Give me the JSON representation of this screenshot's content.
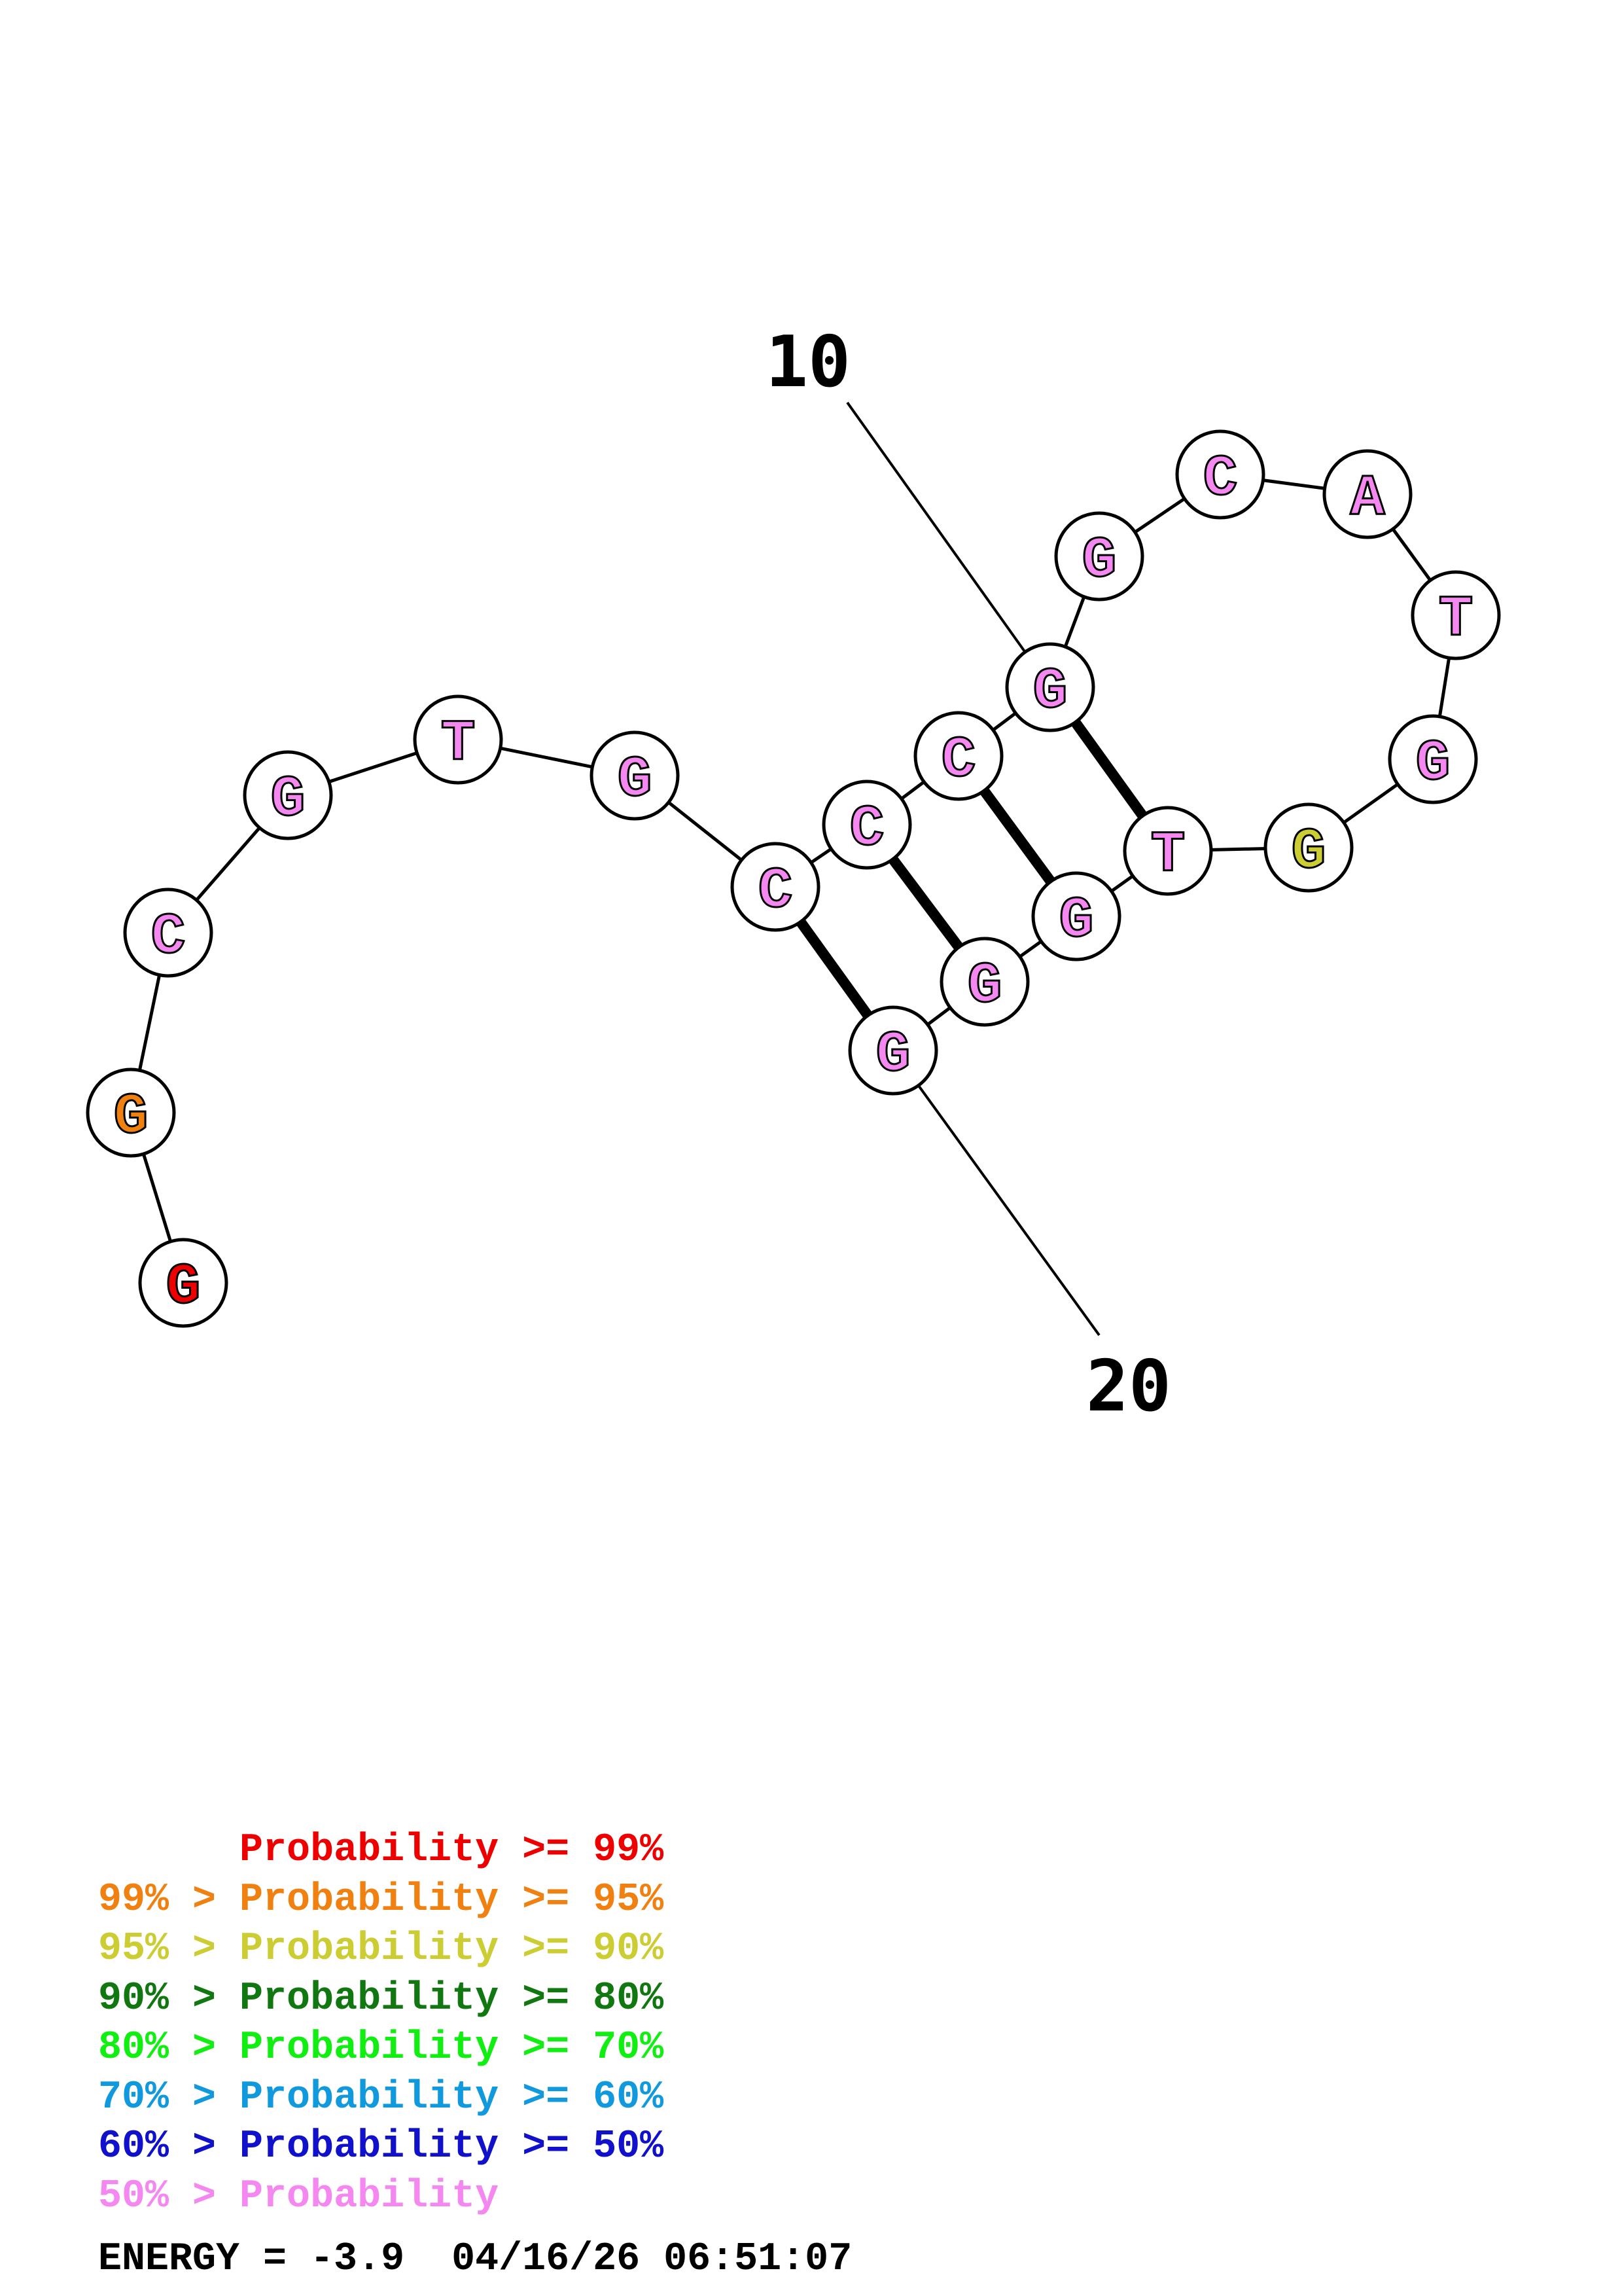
{
  "colors": {
    "p99": "#ee0000",
    "p95": "#f08010",
    "p90": "#cccc33",
    "p80": "#117711",
    "p70": "#11ee11",
    "p60": "#1199dd",
    "p50": "#1111cc",
    "plow": "#f588f0",
    "line": "#000000"
  },
  "nucleotides": [
    {
      "base": "G",
      "prob": "p99"
    },
    {
      "base": "G",
      "prob": "p95"
    },
    {
      "base": "C",
      "prob": "plow"
    },
    {
      "base": "G",
      "prob": "plow"
    },
    {
      "base": "T",
      "prob": "plow"
    },
    {
      "base": "G",
      "prob": "plow"
    },
    {
      "base": "C",
      "prob": "plow"
    },
    {
      "base": "C",
      "prob": "plow"
    },
    {
      "base": "C",
      "prob": "plow"
    },
    {
      "base": "G",
      "prob": "plow"
    },
    {
      "base": "G",
      "prob": "plow"
    },
    {
      "base": "C",
      "prob": "plow"
    },
    {
      "base": "A",
      "prob": "plow"
    },
    {
      "base": "T",
      "prob": "plow"
    },
    {
      "base": "G",
      "prob": "plow"
    },
    {
      "base": "G",
      "prob": "p90"
    },
    {
      "base": "T",
      "prob": "plow"
    },
    {
      "base": "G",
      "prob": "plow"
    },
    {
      "base": "G",
      "prob": "plow"
    },
    {
      "base": "G",
      "prob": "plow"
    }
  ],
  "pairs": [
    [
      7,
      20
    ],
    [
      8,
      19
    ],
    [
      9,
      18
    ],
    [
      10,
      17
    ]
  ],
  "position_labels": [
    {
      "text": "10",
      "nucleotide": 10
    },
    {
      "text": "20",
      "nucleotide": 20
    }
  ],
  "legend": [
    {
      "prefix": "",
      "label": "Probability",
      "suffix": ">= 99%",
      "color": "p99"
    },
    {
      "prefix": "99% >",
      "label": "Probability",
      "suffix": ">= 95%",
      "color": "p95"
    },
    {
      "prefix": "95% >",
      "label": "Probability",
      "suffix": ">= 90%",
      "color": "p90"
    },
    {
      "prefix": "90% >",
      "label": "Probability",
      "suffix": ">= 80%",
      "color": "p80"
    },
    {
      "prefix": "80% >",
      "label": "Probability",
      "suffix": ">= 70%",
      "color": "p70"
    },
    {
      "prefix": "70% >",
      "label": "Probability",
      "suffix": ">= 60%",
      "color": "p60"
    },
    {
      "prefix": "60% >",
      "label": "Probability",
      "suffix": ">= 50%",
      "color": "p50"
    },
    {
      "prefix": "50% >",
      "label": "Probability",
      "suffix": "",
      "color": "plow"
    }
  ],
  "energy": {
    "text": "ENERGY = -3.9",
    "timestamp": "04/16/26 06:51:07"
  }
}
